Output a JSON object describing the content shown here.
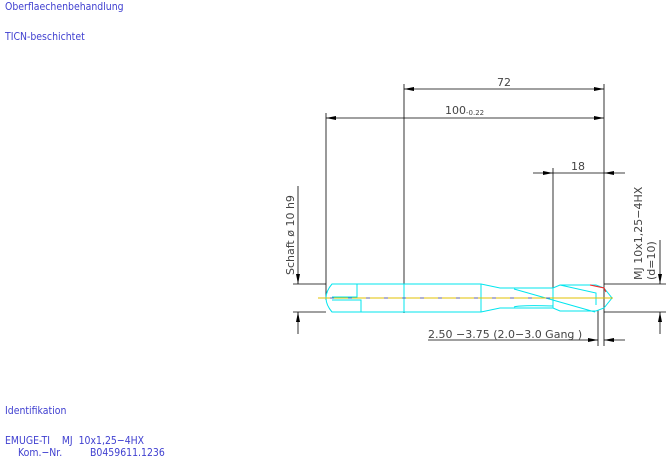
{
  "header": {
    "surface_title": "Oberflaechenbehandlung",
    "surface_value": "TICN-beschichtet"
  },
  "drawing": {
    "dim_thread_offset": "72",
    "dim_total_length": "100",
    "dim_total_tolerance": "-0.22",
    "dim_thread_length": "18",
    "shank_label": "Schaft ø 10  h9",
    "thread_label": "MJ 10x1,25−4HX",
    "thread_diameter": "(d=10)",
    "chamfer_label": "2.50 −3.75 (2.0−3.0  Gang  )",
    "colors": {
      "outline": "#00e5ee",
      "centerline": "#e0c000",
      "dimension": "#000000",
      "chamfer": "#ff2020"
    }
  },
  "footer": {
    "ident_title": "Identifikation",
    "product": "EMUGE-TI    MJ  10x1,25−4HX",
    "kom_label": "Kom.−Nr.",
    "kom_value": "B0459611.1236"
  }
}
